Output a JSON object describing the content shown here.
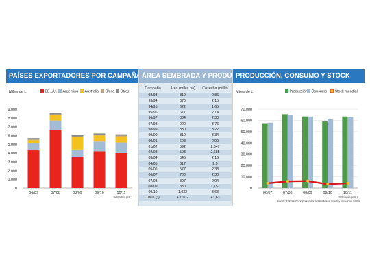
{
  "panel1": {
    "title": "PAÍSES EXPORTADORES POR CAMPAÑA",
    "chart_data": {
      "type": "bar",
      "stacked": true,
      "title": "PAÍSES EXPORTADORES POR CAMPAÑA",
      "ylabel": "Miles de t.",
      "xlabel": "Setembre (est.)",
      "categories": [
        "06/07",
        "07/08",
        "08/09",
        "09/10",
        "10/11"
      ],
      "ylim": [
        0,
        9000
      ],
      "yticks": [
        "9.000",
        "8.000",
        "7.000",
        "6.000",
        "5.000",
        "4.000",
        "3.000",
        "2.000",
        "1.000",
        "0"
      ],
      "series": [
        {
          "name": "EE.UU.",
          "color": "#e8241c",
          "values": [
            4300,
            6600,
            3600,
            4200,
            4000
          ]
        },
        {
          "name": "Argentina",
          "color": "#a3bcd6",
          "values": [
            850,
            1100,
            800,
            1100,
            1200
          ]
        },
        {
          "name": "Australia",
          "color": "#f4c21c",
          "values": [
            300,
            600,
            1400,
            700,
            700
          ]
        },
        {
          "name": "China",
          "color": "#bfa37a",
          "values": [
            100,
            100,
            80,
            80,
            80
          ]
        },
        {
          "name": "Otros",
          "color": "#8a8a8a",
          "values": [
            150,
            200,
            150,
            150,
            150
          ]
        }
      ],
      "legend": "top"
    }
  },
  "panel2": {
    "title": "ÁREA SEMBRADA Y PRODUCCIÓN",
    "columns": [
      "Campaña",
      "Área (miles ha)",
      "Cosecha (mill.t)"
    ],
    "rows": [
      [
        "92/93",
        "810",
        "2,86"
      ],
      [
        "93/94",
        "670",
        "2,15"
      ],
      [
        "94/95",
        "622",
        "1,65"
      ],
      [
        "95/96",
        "671",
        "2,14"
      ],
      [
        "96/97",
        "804",
        "2,30"
      ],
      [
        "97/98",
        "920",
        "3,76"
      ],
      [
        "98/99",
        "880",
        "3,22"
      ],
      [
        "99/00",
        "819",
        "3,34"
      ],
      [
        "00/01",
        "698",
        "2,90"
      ],
      [
        "01/02",
        "592",
        "2,647"
      ],
      [
        "02/03",
        "593",
        "2,685"
      ],
      [
        "03/04",
        "545",
        "2,16"
      ],
      [
        "04/05",
        "617",
        "2,9"
      ],
      [
        "05/06",
        "577",
        "2,33"
      ],
      [
        "06/07",
        "700",
        "2,30"
      ],
      [
        "07/08",
        "807",
        "2,94"
      ],
      [
        "08/09",
        "830",
        "1,752"
      ],
      [
        "09/10",
        "1.032",
        "3,63"
      ],
      [
        "10/11 (*)",
        "+ 1.032",
        "+3,63"
      ]
    ]
  },
  "panel3": {
    "title": "PRODUCCIÓN, CONSUMO Y STOCK",
    "source": "Fuente: Elaboración propia en base a datos Maizar / oferta y producción / USDA",
    "chart_data": {
      "type": "bar",
      "title": "PRODUCCIÓN, CONSUMO Y STOCK",
      "ylabel": "Miles de t.",
      "xlabel": "Setembre (est.)",
      "categories": [
        "06/07",
        "07/08",
        "08/09",
        "09/10",
        "10/11"
      ],
      "ylim": [
        0,
        70000
      ],
      "yticks": [
        "70.000",
        "60.000",
        "50.000",
        "40.000",
        "30.000",
        "20.000",
        "10.000",
        "0"
      ],
      "series": [
        {
          "name": "Producción",
          "type": "bar",
          "color": "#4e9a4a",
          "values": [
            57500,
            65500,
            63500,
            59000,
            63500
          ]
        },
        {
          "name": "Consumo",
          "type": "bar",
          "color": "#a3bcd6",
          "values": [
            58000,
            64500,
            63500,
            61000,
            63000
          ]
        },
        {
          "name": "Stock mundial",
          "type": "line",
          "color": "#d8141c",
          "marker_color": "#f4c21c",
          "values": [
            4300,
            6000,
            6300,
            3500,
            4300
          ]
        }
      ],
      "legend": "top"
    }
  }
}
